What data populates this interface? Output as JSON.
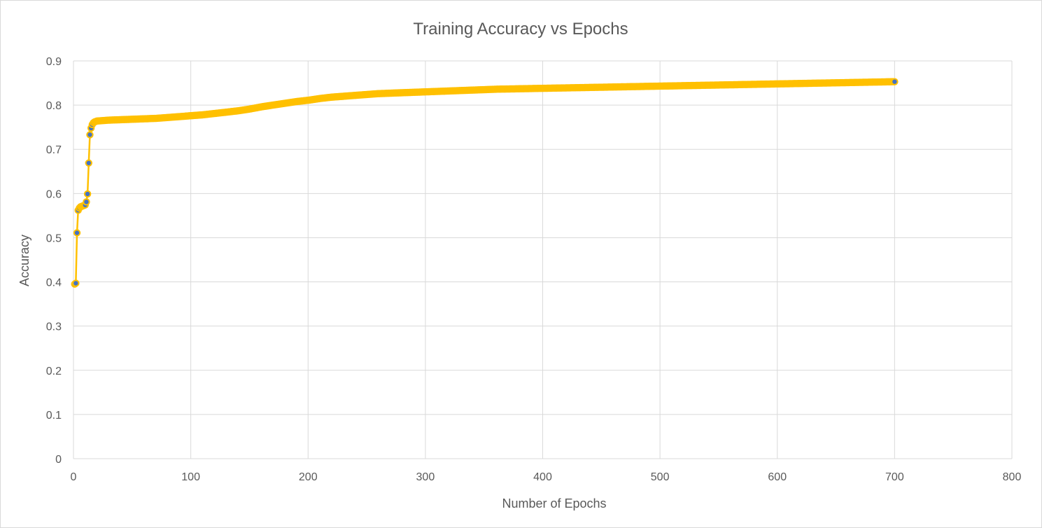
{
  "chart_data": {
    "type": "scatter",
    "title": "Training Accuracy vs Epochs",
    "xlabel": "Number of Epochs",
    "ylabel": "Accuracy",
    "xlim": [
      0,
      800
    ],
    "ylim": [
      0,
      0.9
    ],
    "x_ticks": [
      "0",
      "100",
      "200",
      "300",
      "400",
      "500",
      "600",
      "700",
      "800"
    ],
    "y_ticks": [
      "0",
      "0.1",
      "0.2",
      "0.3",
      "0.4",
      "0.5",
      "0.6",
      "0.7",
      "0.8",
      "0.9"
    ],
    "grid": true,
    "legend": "none",
    "line_color": "#FFC000",
    "marker_color": "#4472C4",
    "series": [
      {
        "x": [
          1,
          2,
          3,
          4,
          5,
          6,
          7,
          8,
          9,
          10,
          11,
          12,
          13,
          14,
          15,
          16,
          17,
          18,
          19,
          20,
          25,
          30,
          40,
          50,
          60,
          70,
          80,
          90,
          100,
          110,
          120,
          130,
          140,
          150,
          160,
          170,
          180,
          190,
          200,
          210,
          220,
          230,
          240,
          250,
          260,
          270,
          280,
          290,
          300,
          320,
          340,
          360,
          380,
          400,
          420,
          440,
          460,
          480,
          500,
          520,
          540,
          560,
          580,
          600,
          620,
          640,
          660,
          680,
          700
        ],
        "y": [
          0.395,
          0.397,
          0.511,
          0.562,
          0.567,
          0.57,
          0.571,
          0.572,
          0.573,
          0.574,
          0.581,
          0.599,
          0.669,
          0.733,
          0.748,
          0.756,
          0.76,
          0.762,
          0.763,
          0.764,
          0.765,
          0.766,
          0.767,
          0.768,
          0.769,
          0.77,
          0.772,
          0.774,
          0.776,
          0.778,
          0.781,
          0.784,
          0.787,
          0.791,
          0.796,
          0.8,
          0.804,
          0.808,
          0.811,
          0.815,
          0.818,
          0.82,
          0.822,
          0.824,
          0.826,
          0.827,
          0.828,
          0.829,
          0.83,
          0.832,
          0.834,
          0.836,
          0.837,
          0.838,
          0.839,
          0.84,
          0.841,
          0.842,
          0.843,
          0.844,
          0.845,
          0.846,
          0.847,
          0.848,
          0.849,
          0.85,
          0.851,
          0.852,
          0.853
        ]
      }
    ]
  }
}
